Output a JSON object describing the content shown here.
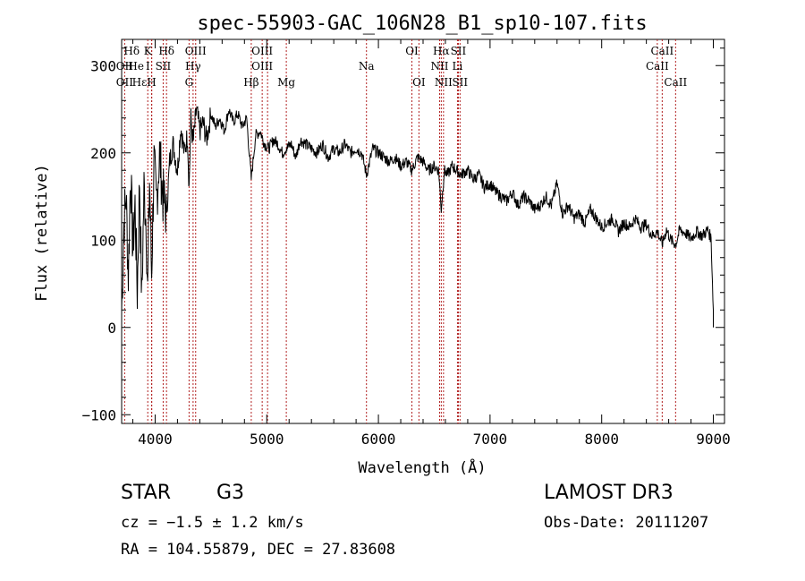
{
  "chart_data": {
    "type": "line",
    "title": "spec-55903-GAC_106N28_B1_sp10-107.fits",
    "xlabel": "Wavelength (Å)",
    "ylabel": "Flux (relative)",
    "xlim": [
      3700,
      9100
    ],
    "ylim": [
      -110,
      330
    ],
    "xticks": [
      4000,
      5000,
      6000,
      7000,
      8000,
      9000
    ],
    "yticks": [
      -100,
      0,
      100,
      200,
      300
    ],
    "grid": false,
    "series": [
      {
        "name": "flux",
        "x": [
          3700,
          3720,
          3740,
          3760,
          3780,
          3800,
          3820,
          3840,
          3860,
          3880,
          3900,
          3920,
          3933,
          3950,
          3968,
          3990,
          4010,
          4040,
          4070,
          4102,
          4130,
          4160,
          4200,
          4230,
          4260,
          4290,
          4304,
          4320,
          4340,
          4370,
          4400,
          4430,
          4460,
          4500,
          4540,
          4580,
          4620,
          4660,
          4700,
          4740,
          4780,
          4820,
          4861,
          4900,
          4940,
          4980,
          5020,
          5060,
          5100,
          5140,
          5173,
          5220,
          5260,
          5300,
          5350,
          5400,
          5450,
          5500,
          5550,
          5600,
          5650,
          5700,
          5750,
          5800,
          5850,
          5893,
          5950,
          6000,
          6050,
          6100,
          6150,
          6200,
          6250,
          6300,
          6350,
          6400,
          6450,
          6500,
          6540,
          6563,
          6590,
          6620,
          6660,
          6700,
          6740,
          6800,
          6850,
          6900,
          6950,
          7000,
          7050,
          7100,
          7150,
          7200,
          7250,
          7300,
          7350,
          7400,
          7450,
          7500,
          7550,
          7600,
          7650,
          7700,
          7750,
          7800,
          7850,
          7900,
          7950,
          8000,
          8050,
          8100,
          8150,
          8200,
          8250,
          8300,
          8350,
          8400,
          8450,
          8498,
          8542,
          8580,
          8620,
          8662,
          8700,
          8750,
          8800,
          8850,
          8900,
          8950,
          8980,
          9000
        ],
        "values": [
          20,
          120,
          150,
          60,
          180,
          90,
          140,
          40,
          170,
          30,
          160,
          120,
          40,
          170,
          60,
          190,
          140,
          200,
          150,
          130,
          190,
          210,
          180,
          230,
          200,
          220,
          160,
          240,
          210,
          250,
          225,
          235,
          215,
          245,
          230,
          240,
          225,
          250,
          235,
          245,
          230,
          240,
          170,
          220,
          225,
          210,
          205,
          215,
          210,
          200,
          205,
          210,
          195,
          215,
          210,
          205,
          200,
          210,
          195,
          205,
          200,
          210,
          200,
          205,
          200,
          175,
          205,
          200,
          195,
          190,
          195,
          185,
          190,
          180,
          195,
          190,
          180,
          185,
          180,
          135,
          180,
          175,
          185,
          180,
          175,
          180,
          170,
          175,
          160,
          165,
          155,
          150,
          145,
          155,
          140,
          150,
          145,
          135,
          140,
          150,
          140,
          165,
          130,
          140,
          125,
          130,
          120,
          135,
          125,
          115,
          120,
          125,
          110,
          120,
          115,
          125,
          115,
          118,
          105,
          110,
          95,
          112,
          100,
          95,
          112,
          108,
          102,
          110,
          105,
          112,
          102,
          20
        ]
      }
    ],
    "lines": [
      {
        "name": "Hδ",
        "x": 4102
      },
      {
        "name": "OII",
        "x": 3727
      },
      {
        "name": "K",
        "x": 3934
      },
      {
        "name": "H",
        "x": 3968
      },
      {
        "name": "Hε",
        "x": 3970
      },
      {
        "name": "SII",
        "x": 4072
      },
      {
        "name": "Hγ",
        "x": 4340
      },
      {
        "name": "OIII",
        "x": 4363
      },
      {
        "name": "G",
        "x": 4304
      },
      {
        "name": "Hβ",
        "x": 4861
      },
      {
        "name": "OIII",
        "x": 4959
      },
      {
        "name": "OIII",
        "x": 5007
      },
      {
        "name": "Mg",
        "x": 5175
      },
      {
        "name": "Na",
        "x": 5893
      },
      {
        "name": "OI",
        "x": 6300
      },
      {
        "name": "OI",
        "x": 6363
      },
      {
        "name": "NII",
        "x": 6548
      },
      {
        "name": "Hα",
        "x": 6563
      },
      {
        "name": "NII",
        "x": 6583
      },
      {
        "name": "Li",
        "x": 6708
      },
      {
        "name": "SII",
        "x": 6716
      },
      {
        "name": "SII",
        "x": 6731
      },
      {
        "name": "CaII",
        "x": 8498
      },
      {
        "name": "CaII",
        "x": 8542
      },
      {
        "name": "CaII",
        "x": 8662
      }
    ],
    "line_labels_row1": [
      {
        "text": "Hδ",
        "x": 3790
      },
      {
        "text": "K",
        "x": 3934
      },
      {
        "text": "Hδ",
        "x": 4102
      },
      {
        "text": "OIII",
        "x": 4363
      },
      {
        "text": "OIII",
        "x": 4959
      },
      {
        "text": "OI",
        "x": 6300
      },
      {
        "text": "Hα",
        "x": 6563
      },
      {
        "text": "SII",
        "x": 6716
      },
      {
        "text": "CaII",
        "x": 8542
      }
    ],
    "line_labels_row2": [
      {
        "text": "OII",
        "x": 3727
      },
      {
        "text": "He",
        "x": 3830
      },
      {
        "text": "I",
        "x": 3935
      },
      {
        "text": "SII",
        "x": 4072
      },
      {
        "text": "Hγ",
        "x": 4340
      },
      {
        "text": "OIII",
        "x": 4959
      },
      {
        "text": "Na",
        "x": 5893
      },
      {
        "text": "NII",
        "x": 6548
      },
      {
        "text": "Li",
        "x": 6708
      },
      {
        "text": "CaII",
        "x": 8498
      }
    ],
    "line_labels_row3": [
      {
        "text": "OII",
        "x": 3727
      },
      {
        "text": "Hε",
        "x": 3860
      },
      {
        "text": "H",
        "x": 3968
      },
      {
        "text": "G",
        "x": 4304
      },
      {
        "text": "Hβ",
        "x": 4861
      },
      {
        "text": "Mg",
        "x": 5175
      },
      {
        "text": "OI",
        "x": 6363
      },
      {
        "text": "NII",
        "x": 6583
      },
      {
        "text": "SII",
        "x": 6731
      },
      {
        "text": "CaII",
        "x": 8662
      }
    ]
  },
  "info": {
    "object_class": "STAR",
    "subclass": "G3",
    "survey": "LAMOST DR3",
    "cz": "cz = −1.5 ± 1.2 km/s",
    "obs_date": "Obs-Date: 20111207",
    "coords": "RA = 104.55879, DEC =  27.83608"
  },
  "colors": {
    "spectrum": "#000000",
    "line_markers": "#b22222",
    "axes": "#000000"
  }
}
